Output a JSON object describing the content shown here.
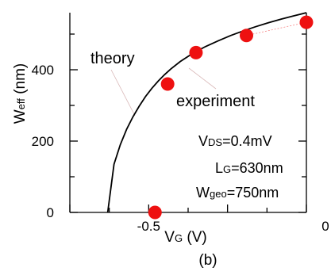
{
  "chart_data": {
    "type": "scatter",
    "panel_label": "(b)",
    "xlabel": {
      "main": "V",
      "sub": "G",
      "unit": " (V)"
    },
    "ylabel": {
      "main": "W",
      "sub": "eff",
      "unit": " (nm)"
    },
    "xlim": [
      -0.75,
      0.0
    ],
    "ylim": [
      0,
      560
    ],
    "x_ticks": [
      {
        "value": -0.5,
        "label": "-0.5"
      },
      {
        "value": 0.0,
        "label": "0"
      }
    ],
    "y_ticks": [
      {
        "value": 0,
        "label": "0"
      },
      {
        "value": 200,
        "label": "200"
      },
      {
        "value": 400,
        "label": "400"
      }
    ],
    "series": [
      {
        "role": "experiment",
        "style": "marker",
        "color": "#ee1111",
        "x": [
          -0.48,
          -0.44,
          -0.35,
          -0.19,
          0.0
        ],
        "y": [
          0,
          360,
          448,
          496,
          533
        ]
      },
      {
        "role": "theory",
        "style": "line",
        "color": "#000000",
        "x": [
          -0.63,
          -0.61,
          -0.59,
          -0.57,
          -0.55,
          -0.53,
          -0.51,
          -0.49,
          -0.47,
          -0.45,
          -0.43,
          -0.4,
          -0.36,
          -0.32,
          -0.28,
          -0.24,
          -0.2,
          -0.16,
          -0.12,
          -0.08,
          -0.04,
          0.0
        ],
        "y": [
          0,
          135,
          190,
          233,
          268,
          298,
          325,
          348,
          368,
          386,
          402,
          423,
          446,
          465,
          481,
          496,
          509,
          521,
          532,
          542,
          551,
          560
        ]
      }
    ],
    "annotations": {
      "theory": "theory",
      "experiment": "experiment",
      "vds": {
        "main": "V",
        "sub": "DS",
        "rest": "=0.4mV"
      },
      "lg": {
        "main": "L",
        "sub": "G",
        "rest": "=630nm"
      },
      "wgeo": {
        "main": "W",
        "sub": "geo",
        "rest": "=750nm"
      }
    },
    "colors": {
      "marker": "#ee1111",
      "theory_line": "#000000",
      "leader": "#d9b8b8"
    }
  }
}
